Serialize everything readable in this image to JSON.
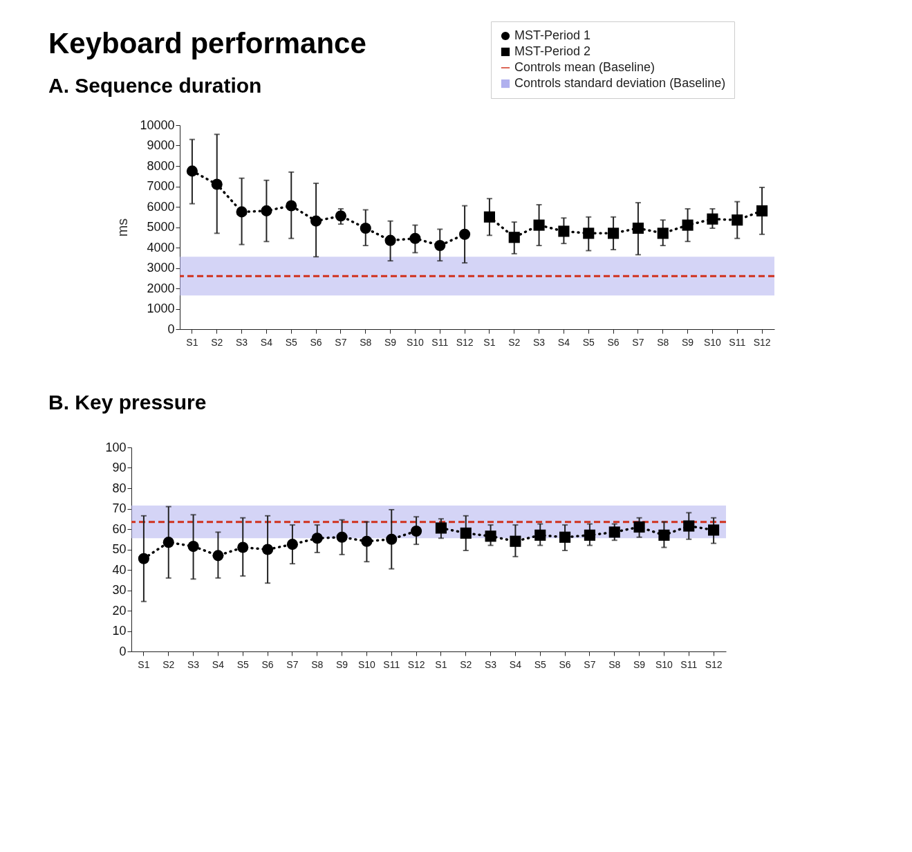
{
  "chart_data": [
    {
      "type": "line",
      "title": "Keyboard performance",
      "subtitle": "A. Sequence duration",
      "ylabel": "ms",
      "categories": [
        "S1",
        "S2",
        "S3",
        "S4",
        "S5",
        "S6",
        "S7",
        "S8",
        "S9",
        "S10",
        "S11",
        "S12",
        "S1",
        "S2",
        "S3",
        "S4",
        "S5",
        "S6",
        "S7",
        "S8",
        "S9",
        "S10",
        "S11",
        "S12"
      ],
      "series": [
        {
          "name": "MST-Period 1",
          "color": "#000000",
          "marker": "circle",
          "line_style": "dotted",
          "values": [
            7750,
            7100,
            5750,
            5800,
            6050,
            5300,
            5550,
            4950,
            4350,
            4450,
            4100,
            4650,
            null,
            null,
            null,
            null,
            null,
            null,
            null,
            null,
            null,
            null,
            null,
            null
          ],
          "errors": [
            [
              6150,
              9300
            ],
            [
              4700,
              9550
            ],
            [
              4150,
              7400
            ],
            [
              4300,
              7300
            ],
            [
              4450,
              7700
            ],
            [
              3550,
              7150
            ],
            [
              5150,
              5900
            ],
            [
              4100,
              5850
            ],
            [
              3350,
              5300
            ],
            [
              3750,
              5100
            ],
            [
              3350,
              4900
            ],
            [
              3250,
              6050
            ],
            null,
            null,
            null,
            null,
            null,
            null,
            null,
            null,
            null,
            null,
            null,
            null
          ]
        },
        {
          "name": "MST-Period 2",
          "color": "#000000",
          "marker": "square",
          "line_style": "dotted",
          "values": [
            null,
            null,
            null,
            null,
            null,
            null,
            null,
            null,
            null,
            null,
            null,
            null,
            5500,
            4500,
            5100,
            4800,
            4700,
            4700,
            4950,
            4700,
            5100,
            5400,
            5350,
            5800
          ],
          "errors": [
            null,
            null,
            null,
            null,
            null,
            null,
            null,
            null,
            null,
            null,
            null,
            null,
            [
              4600,
              6400
            ],
            [
              3700,
              5250
            ],
            [
              4100,
              6100
            ],
            [
              4200,
              5450
            ],
            [
              3850,
              5500
            ],
            [
              3900,
              5500
            ],
            [
              3650,
              6200
            ],
            [
              4100,
              5350
            ],
            [
              4300,
              5900
            ],
            [
              4950,
              5900
            ],
            [
              4450,
              6250
            ],
            [
              4650,
              6950
            ]
          ]
        }
      ],
      "ylim": [
        0,
        10000
      ],
      "yticks": [
        0,
        1000,
        2000,
        3000,
        4000,
        5000,
        6000,
        7000,
        8000,
        9000,
        10000
      ],
      "legend": "top right",
      "ref_lines": [
        {
          "axis": "y",
          "value": 2600,
          "label": "Controls mean (Baseline)",
          "color": "#d0301c",
          "line_style": "dashed"
        }
      ],
      "bands": [
        {
          "axis": "y",
          "from": 1650,
          "to": 3550,
          "label": "Controls standard deviation (Baseline)",
          "color": "#b0b0ee"
        }
      ]
    },
    {
      "type": "line",
      "title": "B. Key pressure",
      "categories": [
        "S1",
        "S2",
        "S3",
        "S4",
        "S5",
        "S6",
        "S7",
        "S8",
        "S9",
        "S10",
        "S11",
        "S12",
        "S1",
        "S2",
        "S3",
        "S4",
        "S5",
        "S6",
        "S7",
        "S8",
        "S9",
        "S10",
        "S11",
        "S12"
      ],
      "series": [
        {
          "color": "#000000",
          "marker": "circle",
          "line_style": "dotted",
          "values": [
            45.5,
            53.5,
            51.5,
            47,
            51,
            50,
            52.5,
            55.5,
            56,
            54,
            55,
            59,
            null,
            null,
            null,
            null,
            null,
            null,
            null,
            null,
            null,
            null,
            null,
            null
          ],
          "errors": [
            [
              24.5,
              66.5
            ],
            [
              36,
              71
            ],
            [
              35.5,
              67
            ],
            [
              36,
              58.5
            ],
            [
              37,
              65.5
            ],
            [
              33.5,
              66.5
            ],
            [
              43,
              62
            ],
            [
              48.5,
              62
            ],
            [
              47.5,
              64.5
            ],
            [
              44,
              63.5
            ],
            [
              40.5,
              69.5
            ],
            [
              52.5,
              66
            ],
            null,
            null,
            null,
            null,
            null,
            null,
            null,
            null,
            null,
            null,
            null,
            null
          ]
        },
        {
          "color": "#000000",
          "marker": "square",
          "line_style": "dotted",
          "values": [
            null,
            null,
            null,
            null,
            null,
            null,
            null,
            null,
            null,
            null,
            null,
            null,
            60.5,
            58,
            56.5,
            54,
            57,
            56,
            57,
            58.5,
            61,
            57,
            61.5,
            59.5
          ],
          "errors": [
            null,
            null,
            null,
            null,
            null,
            null,
            null,
            null,
            null,
            null,
            null,
            null,
            [
              55.5,
              65
            ],
            [
              49.5,
              66.5
            ],
            [
              52,
              62
            ],
            [
              46.5,
              62
            ],
            [
              52,
              62.5
            ],
            [
              49.5,
              62
            ],
            [
              52,
              62.5
            ],
            [
              54.5,
              62.5
            ],
            [
              56,
              65.5
            ],
            [
              51,
              63.5
            ],
            [
              55,
              68
            ],
            [
              53,
              65.5
            ]
          ]
        }
      ],
      "ylim": [
        0,
        100
      ],
      "yticks": [
        0,
        10,
        20,
        30,
        40,
        50,
        60,
        70,
        80,
        90,
        100
      ],
      "ref_lines": [
        {
          "axis": "y",
          "value": 63.5,
          "color": "#d0301c",
          "line_style": "dashed"
        }
      ],
      "bands": [
        {
          "axis": "y",
          "from": 55.5,
          "to": 71.5,
          "color": "#b0b0ee"
        }
      ]
    }
  ]
}
